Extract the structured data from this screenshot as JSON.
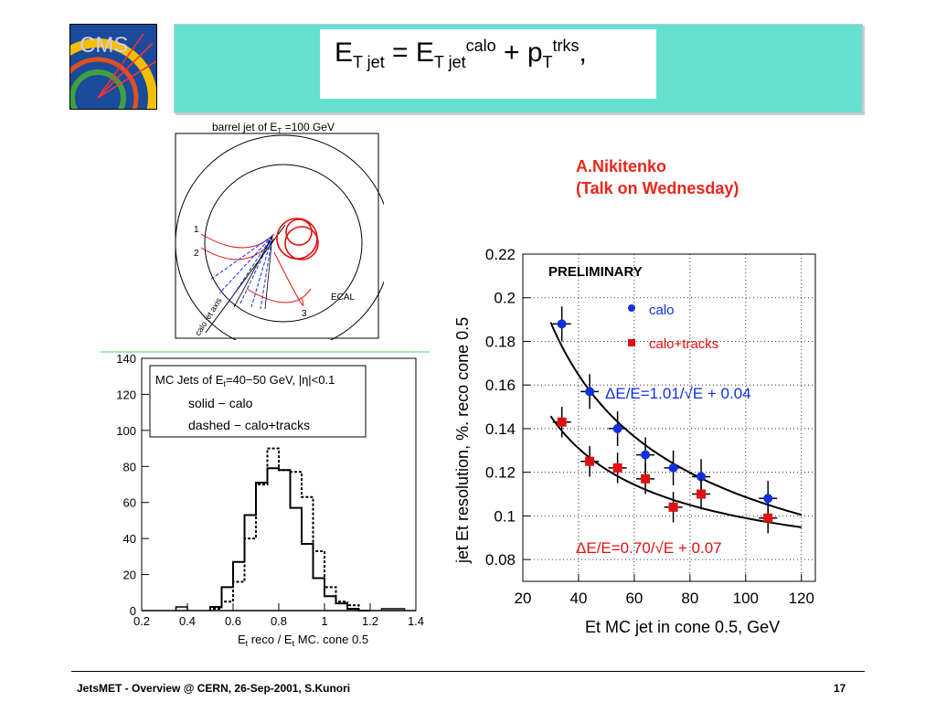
{
  "logo": {
    "text": "CMS"
  },
  "formula": {
    "lhs_main": "E",
    "lhs_sub": "T jet",
    "eq": " = ",
    "t1_main": "E",
    "t1_sub": "T jet",
    "t1_sup": "calo",
    "plus": " + ",
    "t2_main": "p",
    "t2_sub": "T",
    "t2_sup": "trks",
    "comma": ","
  },
  "author": {
    "line1": "A.Nikitenko",
    "line2": "(Talk on Wednesday)"
  },
  "event_display": {
    "title": "barrel jet of E",
    "title_sub": "T",
    "title_rest": " =100 GeV",
    "label_1": "1",
    "label_2": "2",
    "label_3": "3",
    "ecal": "ECAL",
    "axis": "calo jet axis"
  },
  "histogram": {
    "box_line1": "MC Jets of E",
    "box_line1_sub": "t",
    "box_line1_rest": "=40−50 GeV, |η|<0.1",
    "legend_solid": "solid − calo",
    "legend_dashed": "dashed − calo+tracks",
    "xlabel": "E",
    "xlabel_sub": "t",
    "xlabel_mid": " reco / E",
    "xlabel_sub2": "t",
    "xlabel_rest": " MC. cone 0.5"
  },
  "chart_data": [
    {
      "type": "line",
      "title": "MC Jets of Et=40-50 GeV, |η|<0.1",
      "xlabel": "Et reco / Et MC. cone 0.5",
      "ylabel": "",
      "xlim": [
        0.2,
        1.4
      ],
      "ylim": [
        0,
        140
      ],
      "x_ticks": [
        "0.2",
        "0.4",
        "0.6",
        "0.8",
        "1",
        "1.2",
        "1.4"
      ],
      "y_ticks": [
        "0",
        "20",
        "40",
        "60",
        "80",
        "100",
        "120",
        "140"
      ],
      "bin_edges": [
        0.5,
        0.55,
        0.6,
        0.65,
        0.7,
        0.75,
        0.8,
        0.85,
        0.9,
        0.95,
        1.0,
        1.05,
        1.1,
        1.15,
        1.2
      ],
      "series": [
        {
          "name": "solid − calo",
          "values": [
            2,
            13,
            27,
            53,
            71,
            79,
            78,
            57,
            37,
            18,
            8,
            4,
            1,
            0
          ],
          "style": "solid"
        },
        {
          "name": "dashed − calo+tracks",
          "values": [
            1,
            5,
            16,
            40,
            70,
            90,
            78,
            77,
            63,
            33,
            13,
            5,
            3,
            0
          ],
          "style": "dashed"
        }
      ],
      "extra_bins_solid": [
        {
          "x0": 0.35,
          "x1": 0.4,
          "value": 2
        },
        {
          "x0": 1.25,
          "x1": 1.35,
          "value": 1
        }
      ]
    },
    {
      "type": "scatter",
      "title": "PRELIMINARY",
      "xlabel": "Et MC jet in cone 0.5, GeV",
      "ylabel": "jet Et resolution, %. reco cone 0.5",
      "xlim": [
        20,
        125
      ],
      "ylim": [
        0.07,
        0.22
      ],
      "x_ticks": [
        "20",
        "40",
        "60",
        "80",
        "100",
        "120"
      ],
      "y_ticks": [
        "0.08",
        "0.1",
        "0.12",
        "0.14",
        "0.16",
        "0.18",
        "0.2",
        "0.22"
      ],
      "legend_calo": "calo",
      "legend_tracks": "calo+tracks",
      "fit_calo_label": "ΔE/E=1.01/√E + 0.04",
      "fit_tracks_label": "ΔE/E=0.70/√E + 0.07",
      "colors": {
        "calo": "#1030e0",
        "tracks": "#e01010"
      },
      "series": [
        {
          "name": "calo",
          "x": [
            34,
            44,
            54,
            64,
            74,
            84,
            108
          ],
          "y": [
            0.188,
            0.157,
            0.14,
            0.128,
            0.122,
            0.118,
            0.108
          ],
          "yerr": 0.008
        },
        {
          "name": "calo+tracks",
          "x": [
            34,
            44,
            54,
            64,
            74,
            84,
            108
          ],
          "y": [
            0.143,
            0.125,
            0.122,
            0.117,
            0.104,
            0.11,
            0.099
          ],
          "yerr": 0.007
        }
      ],
      "fit_calo": {
        "a": 1.01,
        "b": 0.04
      },
      "fit_tracks": {
        "a": 0.7,
        "b": 0.07
      }
    }
  ],
  "footer": {
    "left": "JetsMET - Overview @ CERN, 26-Sep-2001, S.Kunori",
    "page": "17"
  }
}
